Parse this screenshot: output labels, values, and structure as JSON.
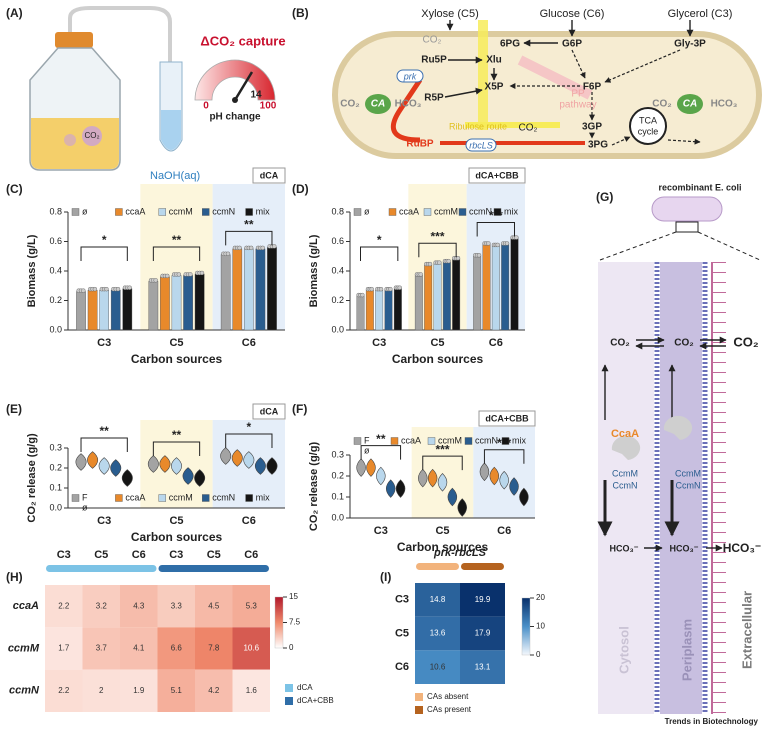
{
  "panels": {
    "A": {
      "label": "(A)",
      "title": "ΔCO₂ capture",
      "gauge_min": "0",
      "gauge_mid": "14",
      "gauge_max": "100",
      "gauge_label": "pH change",
      "naoh": "NaOH(aq)",
      "bottle_co2": "CO₂"
    },
    "B": {
      "label": "(B)",
      "xylose": "Xylose (C5)",
      "glucose": "Glucose (C6)",
      "glycerol": "Glycerol (C3)",
      "co2_top": "CO₂",
      "pg6": "6PG",
      "g6p": "G6P",
      "gly3p": "Gly-3P",
      "ru5p": "Ru5P",
      "xlu": "Xlu",
      "prk": "prk",
      "r5p": "R5P",
      "x5p": "X5P",
      "f6p": "F6P",
      "pp": [
        "PP",
        "pathway"
      ],
      "co2_left": "CO₂",
      "ca_left": "CA",
      "hco3_left": "HCO₃",
      "co2_right": "CO₂",
      "ca_right": "CA",
      "hco3_right": "HCO₃",
      "ribulose": "Ribulose route",
      "co2_mid": "CO₂",
      "gp3": "3GP",
      "tca": [
        "TCA",
        "cycle"
      ],
      "rubp": "RuBP",
      "rbcls": "rbcLS",
      "pg3": "3PG"
    },
    "G": {
      "label": "(G)",
      "title": "recombinant E. coli",
      "co2_1": "CO₂",
      "co2_2": "CO₂",
      "co2_3": "CO₂",
      "ccaa": "CcaA",
      "ccmm_1": "CcmM",
      "ccmn_1": "CcmN",
      "ccmm_2": "CcmM",
      "ccmn_2": "CcmN",
      "hco3_1": "HCO₃⁻",
      "hco3_2": "HCO₃⁻",
      "hco3_3": "HCO₃⁻",
      "cytosol": "Cytosol",
      "periplasm": "Periplasm",
      "extracellular": "Extracellular"
    }
  },
  "chart_data": [
    {
      "type": "bar",
      "panel_label": "(C)",
      "tag": "dCA",
      "ylabel": "Biomass (g/L)",
      "xlabel": "Carbon sources",
      "categories": [
        "C3",
        "C5",
        "C6"
      ],
      "significance": [
        "*",
        "**",
        "**"
      ],
      "band_colors": [
        "#ffffff",
        "#fcf6dc",
        "#e5eef9"
      ],
      "ylim": [
        0,
        0.8
      ],
      "yticks": [
        {
          "value": 0,
          "label": "0.0"
        },
        0.2,
        0.4,
        0.6,
        0.8
      ],
      "legend": "top",
      "series": [
        {
          "name": "ø",
          "color": "#a3a3a3",
          "values": [
            0.26,
            0.33,
            0.51
          ]
        },
        {
          "name": "ccaA",
          "color": "#e8892b",
          "values": [
            0.27,
            0.36,
            0.55
          ]
        },
        {
          "name": "ccmM",
          "color": "#b9d7ec",
          "values": [
            0.27,
            0.37,
            0.55
          ]
        },
        {
          "name": "ccmN",
          "color": "#2a5d8f",
          "values": [
            0.27,
            0.37,
            0.55
          ]
        },
        {
          "name": "mix",
          "color": "#151515",
          "values": [
            0.28,
            0.38,
            0.56
          ]
        }
      ]
    },
    {
      "type": "bar",
      "panel_label": "(D)",
      "tag": "dCA+CBB",
      "ylabel": "Biomass (g/L)",
      "xlabel": "Carbon sources",
      "categories": [
        "C3",
        "C5",
        "C6"
      ],
      "significance": [
        "*",
        "***",
        "***"
      ],
      "band_colors": [
        "#ffffff",
        "#fcf6dc",
        "#e5eef9"
      ],
      "ylim": [
        0,
        0.8
      ],
      "yticks": [
        {
          "value": 0,
          "label": "0.0"
        },
        0.2,
        0.4,
        0.6,
        0.8
      ],
      "legend": "top",
      "series": [
        {
          "name": "ø",
          "color": "#a3a3a3",
          "values": [
            0.23,
            0.37,
            0.5
          ]
        },
        {
          "name": "ccaA",
          "color": "#e8892b",
          "values": [
            0.27,
            0.44,
            0.58
          ]
        },
        {
          "name": "ccmM",
          "color": "#b9d7ec",
          "values": [
            0.27,
            0.45,
            0.57
          ]
        },
        {
          "name": "ccmN",
          "color": "#2a5d8f",
          "values": [
            0.27,
            0.46,
            0.58
          ]
        },
        {
          "name": "mix",
          "color": "#151515",
          "values": [
            0.28,
            0.48,
            0.62
          ]
        }
      ]
    },
    {
      "type": "violin",
      "panel_label": "(E)",
      "tag": "dCA",
      "ylabel": "CO₂ release (g/g)",
      "xlabel": "Carbon sources",
      "categories": [
        "C3",
        "C5",
        "C6"
      ],
      "significance": [
        "**",
        "**",
        "*"
      ],
      "band_colors": [
        "#ffffff",
        "#fcf6dc",
        "#e5eef9"
      ],
      "ylim": [
        0,
        0.3
      ],
      "yticks": [
        {
          "value": 0,
          "label": "0.0"
        },
        0.1,
        0.2,
        0.3
      ],
      "legend": "bottom",
      "legend_extra": "ø",
      "series": [
        {
          "name": "F",
          "color": "#a3a3a3",
          "values": [
            0.23,
            0.22,
            0.26
          ]
        },
        {
          "name": "ccaA",
          "color": "#e8892b",
          "values": [
            0.24,
            0.22,
            0.25
          ]
        },
        {
          "name": "ccmM",
          "color": "#b9d7ec",
          "values": [
            0.21,
            0.21,
            0.24
          ]
        },
        {
          "name": "ccmN",
          "color": "#2a5d8f",
          "values": [
            0.2,
            0.16,
            0.21
          ]
        },
        {
          "name": "mix",
          "color": "#151515",
          "values": [
            0.15,
            0.15,
            0.21
          ]
        }
      ]
    },
    {
      "type": "violin",
      "panel_label": "(F)",
      "tag": "dCA+CBB",
      "ylabel": "CO₂ release (g/g)",
      "xlabel": "Carbon sources",
      "categories": [
        "C3",
        "C5",
        "C6"
      ],
      "significance": [
        "**",
        "***",
        "***"
      ],
      "band_colors": [
        "#ffffff",
        "#fcf6dc",
        "#e5eef9"
      ],
      "ylim": [
        0,
        0.3
      ],
      "yticks": [
        {
          "value": 0,
          "label": "0.0"
        },
        0.1,
        0.2,
        0.3
      ],
      "legend": "top",
      "legend_extra": "ø",
      "series": [
        {
          "name": "F",
          "color": "#a3a3a3",
          "values": [
            0.24,
            0.19,
            0.22
          ]
        },
        {
          "name": "ccaA",
          "color": "#e8892b",
          "values": [
            0.24,
            0.19,
            0.2
          ]
        },
        {
          "name": "ccmM",
          "color": "#b9d7ec",
          "values": [
            0.2,
            0.17,
            0.18
          ]
        },
        {
          "name": "ccmN",
          "color": "#2a5d8f",
          "values": [
            0.14,
            0.1,
            0.15
          ]
        },
        {
          "name": "mix",
          "color": "#151515",
          "values": [
            0.14,
            0.05,
            0.1
          ]
        }
      ]
    },
    {
      "type": "heatmap",
      "panel_label": "(H)",
      "columns": [
        "C3",
        "C5",
        "C6",
        "C3",
        "C5",
        "C6"
      ],
      "rows": [
        "ccaA",
        "ccmM",
        "ccmN"
      ],
      "values": [
        [
          2.2,
          3.2,
          4.3,
          3.3,
          4.5,
          5.3
        ],
        [
          1.7,
          3.7,
          4.1,
          6.6,
          7.8,
          10.6
        ],
        [
          2.2,
          2,
          1.9,
          5.1,
          4.2,
          1.6
        ]
      ],
      "column_groups": [
        {
          "name": "dCA",
          "color": "#7cc3e6"
        },
        {
          "name": "dCA+CBB",
          "color": "#2f6ea8"
        }
      ],
      "clim": [
        0,
        15
      ],
      "cticks": [
        0,
        7.5,
        15
      ],
      "colors": [
        "#ffffff",
        "#f08a6c",
        "#b2182b"
      ]
    },
    {
      "type": "heatmap",
      "panel_label": "(I)",
      "title": "prk-rbcLS",
      "rows": [
        "C3",
        "C5",
        "C6"
      ],
      "values": [
        [
          14.8,
          19.9
        ],
        [
          13.6,
          17.9
        ],
        [
          10.6,
          13.1
        ]
      ],
      "column_groups": [
        {
          "name": "CAs absent",
          "color": "#f2b37c"
        },
        {
          "name": "CAs present",
          "color": "#b5631f"
        }
      ],
      "clim": [
        0,
        20
      ],
      "cticks": [
        0,
        10,
        20
      ],
      "colors": [
        "#f4f8fd",
        "#4a90c8",
        "#08306b"
      ]
    }
  ],
  "footer": "Trends in Biotechnology"
}
